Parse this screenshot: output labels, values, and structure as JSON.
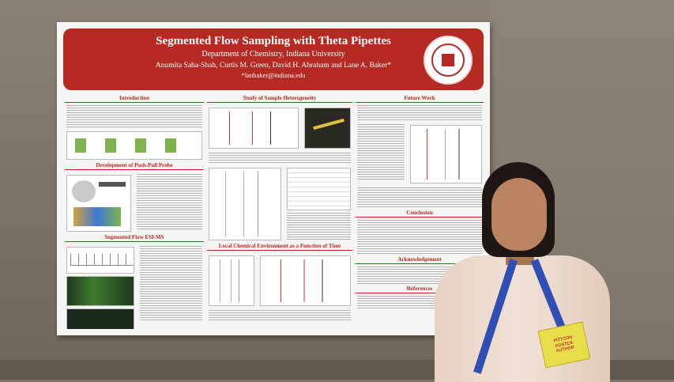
{
  "poster": {
    "title": "Segmented Flow Sampling with Theta Pipettes",
    "department": "Department of Chemistry, Indiana University",
    "authors": "Anumita Saha-Shah, Curtis M. Green, David H. Abraham and Lane A. Baker*",
    "email": "*lanbaker@indiana.edu",
    "sections": {
      "introduction": "Introduction",
      "development": "Development of Push-Pull Probe",
      "segmented_flow": "Segmented Flow ESI-MS",
      "heterogeneity": "Study of Sample Heterogeneity",
      "chemical_env": "Local Chemical Environment as a Function of Time",
      "future_work": "Future Work",
      "conclusion": "Conclusion",
      "acknowledgement": "Acknowledgement",
      "references": "References"
    }
  },
  "badge": {
    "line1": "PITTCON",
    "line2": "POSTER",
    "line3": "AUTHOR"
  },
  "colors": {
    "banner": "#b52a23",
    "lanyard": "#2f4fb5",
    "badge": "#e8de4a"
  }
}
